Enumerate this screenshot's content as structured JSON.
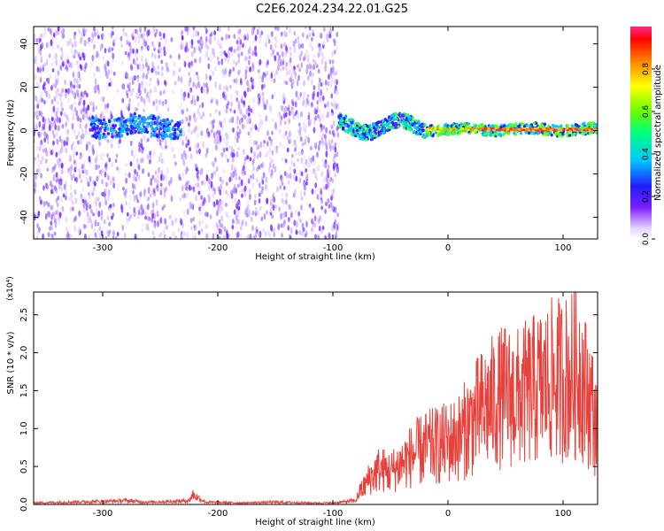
{
  "title": "C2E6.2024.234.22.01.G25",
  "chart_data": [
    {
      "type": "heatmap",
      "xlabel": "Height of straight line (km)",
      "ylabel": "Frequency (Hz)",
      "xlim": [
        -360,
        130
      ],
      "ylim": [
        -50,
        48
      ],
      "xticks": [
        -300,
        -200,
        -100,
        0,
        100
      ],
      "yticks": [
        -40,
        -20,
        0,
        20,
        40
      ],
      "colorbar": {
        "label": "Normalized spectral amplitude",
        "range": [
          0,
          1
        ],
        "ticks": [
          0.0,
          0.2,
          0.4,
          0.6,
          0.8
        ]
      },
      "regions": [
        {
          "x": [
            -360,
            -95
          ],
          "description": "scattered noise across frequencies"
        },
        {
          "x": [
            -310,
            -232
          ],
          "freq_hz": 2,
          "description": "weak band"
        },
        {
          "x": [
            -95,
            -20
          ],
          "freq_hz": 2,
          "description": "wavy band"
        },
        {
          "x": [
            -20,
            130
          ],
          "freq_hz": 0.5,
          "description": "strong band near 0 Hz"
        }
      ]
    },
    {
      "type": "line",
      "xlabel": "Height of straight line (km)",
      "ylabel": "SNR (10 * v/v)",
      "y_multiplier": "(x10⁴)",
      "xlim": [
        -360,
        130
      ],
      "ylim": [
        0,
        2.8
      ],
      "xticks": [
        -300,
        -200,
        -100,
        0,
        100
      ],
      "yticks": [
        0.0,
        0.5,
        1.0,
        1.5,
        2.0,
        2.5
      ],
      "series": [
        {
          "color": "#e8413c",
          "x": [
            -360,
            -300,
            -280,
            -260,
            -240,
            -225,
            -222,
            -210,
            -180,
            -150,
            -120,
            -100,
            -80,
            -70,
            -60,
            -50,
            -40,
            -30,
            -20,
            -10,
            0,
            10,
            20,
            30,
            40,
            50,
            60,
            70,
            80,
            90,
            100,
            110,
            115,
            120,
            125,
            130
          ],
          "y": [
            0.02,
            0.04,
            0.05,
            0.03,
            0.04,
            0.05,
            0.13,
            0.03,
            0.02,
            0.03,
            0.02,
            0.02,
            0.05,
            0.4,
            0.6,
            0.55,
            0.7,
            0.85,
            0.95,
            1.0,
            1.05,
            1.15,
            1.4,
            1.6,
            1.75,
            1.85,
            1.8,
            1.9,
            2.0,
            2.1,
            2.15,
            2.2,
            2.3,
            1.9,
            1.7,
            1.2
          ]
        }
      ]
    }
  ]
}
